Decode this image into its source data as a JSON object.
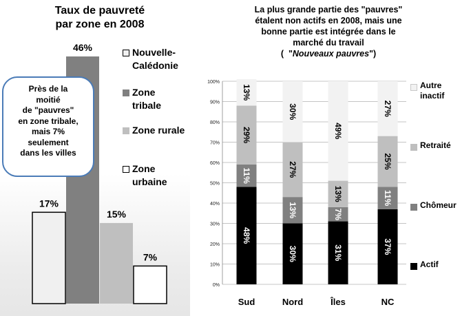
{
  "chart_data": [
    {
      "type": "bar",
      "title": "Taux de pauvreté\npar zone en 2008",
      "categories": [
        "Nouvelle-Calédonie",
        "Zone tribale",
        "Zone rurale",
        "Zone urbaine"
      ],
      "values": [
        17,
        46,
        15,
        7
      ],
      "value_labels": [
        "17%",
        "46%",
        "15%",
        "7%"
      ],
      "colors": [
        "#f0f0f0",
        "#808080",
        "#bfbfbf",
        "#ffffff"
      ],
      "legend": [
        "Nouvelle-\nCalédonie",
        "Zone\ntribale",
        "Zone rurale",
        "Zone\nurbaine"
      ],
      "legend_position": "right",
      "annotation": "Près de la\nmoitié\nde \"pauvres\"\nen zone tribale,\nmais 7%\nseulement\ndans les villes",
      "ylim": [
        0,
        50
      ],
      "grid": false
    },
    {
      "type": "bar",
      "stacked": true,
      "title_lines": [
        "La plus grande partie des \"pauvres\"",
        "étalent non actifs en 2008, mais une",
        "bonne partie est intégrée dans le",
        "marché du travail"
      ],
      "subtitle": "Nouveaux pauvres",
      "categories": [
        "Sud",
        "Nord",
        "Îles",
        "NC"
      ],
      "series": [
        {
          "name": "Actif",
          "values": [
            48,
            30,
            31,
            37
          ],
          "labels": [
            "48%",
            "30%",
            "31%",
            "37%"
          ],
          "color": "#000000"
        },
        {
          "name": "Chômeur",
          "values": [
            11,
            13,
            7,
            11
          ],
          "labels": [
            "11%",
            "13%",
            "7%",
            "11%"
          ],
          "color": "#808080"
        },
        {
          "name": "Retraité",
          "values": [
            29,
            27,
            13,
            25
          ],
          "labels": [
            "29%",
            "27%",
            "13%",
            "25%"
          ],
          "color": "#bfbfbf"
        },
        {
          "name": "Autre inactif",
          "values": [
            13,
            30,
            49,
            27
          ],
          "labels": [
            "13%",
            "30%",
            "49%",
            "27%"
          ],
          "color": "#f2f2f2"
        }
      ],
      "legend": [
        "Autre\ninactif",
        "Retraité",
        "Chômeur",
        "Actif"
      ],
      "legend_position": "right",
      "yticks": [
        "0%",
        "10%",
        "20%",
        "30%",
        "40%",
        "50%",
        "60%",
        "70%",
        "80%",
        "90%",
        "100%"
      ],
      "ylim": [
        0,
        100
      ],
      "grid": true
    }
  ]
}
